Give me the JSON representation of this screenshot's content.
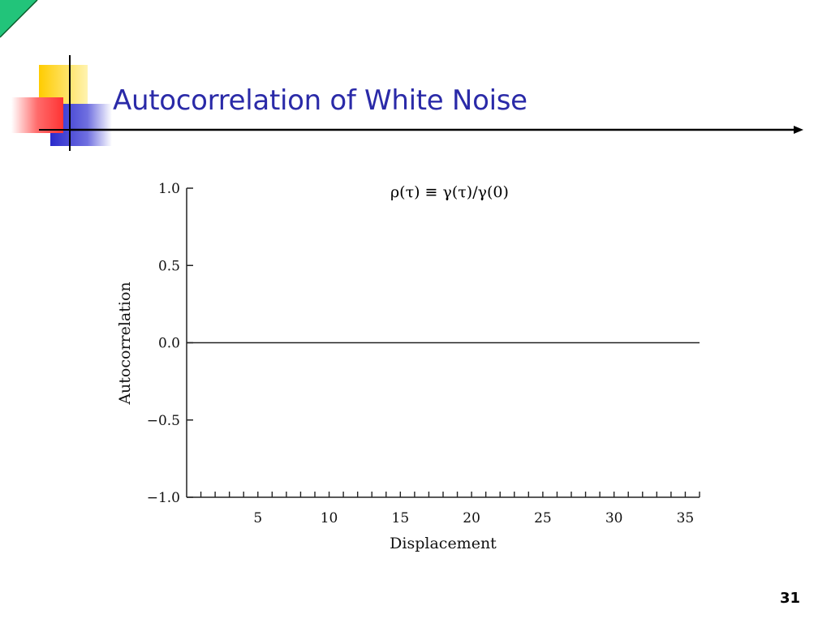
{
  "slide": {
    "title": "Autocorrelation of White Noise",
    "page_number": "31",
    "formula": {
      "lhs": "ρ(τ)",
      "equiv": " ≡ ",
      "rhs": "γ(τ)/γ(0)"
    },
    "colors": {
      "title": "#2a2aa8",
      "accent_green": "#22c47a",
      "deco_yellow": "#ffcc00",
      "deco_red": "#ff5555",
      "deco_blue": "#3333cc"
    }
  },
  "chart_data": {
    "type": "line",
    "title": "",
    "xlabel": "Displacement",
    "ylabel": "Autocorrelation",
    "xlim": [
      0,
      36
    ],
    "ylim": [
      -1.0,
      1.0
    ],
    "x_ticks": [
      5,
      10,
      15,
      20,
      25,
      30,
      35
    ],
    "x_tick_labels": [
      "5",
      "10",
      "15",
      "20",
      "25",
      "30",
      "35"
    ],
    "x_minor_ticks_every": 1,
    "y_ticks": [
      1.0,
      0.5,
      0.0,
      -0.5,
      -1.0
    ],
    "y_tick_labels": [
      "1.0",
      "0.5",
      "0.0",
      "−0.5",
      "−1.0"
    ],
    "grid": false,
    "series": [
      {
        "x": [
          0,
          36
        ],
        "values": [
          0.0,
          0.0
        ]
      }
    ]
  }
}
